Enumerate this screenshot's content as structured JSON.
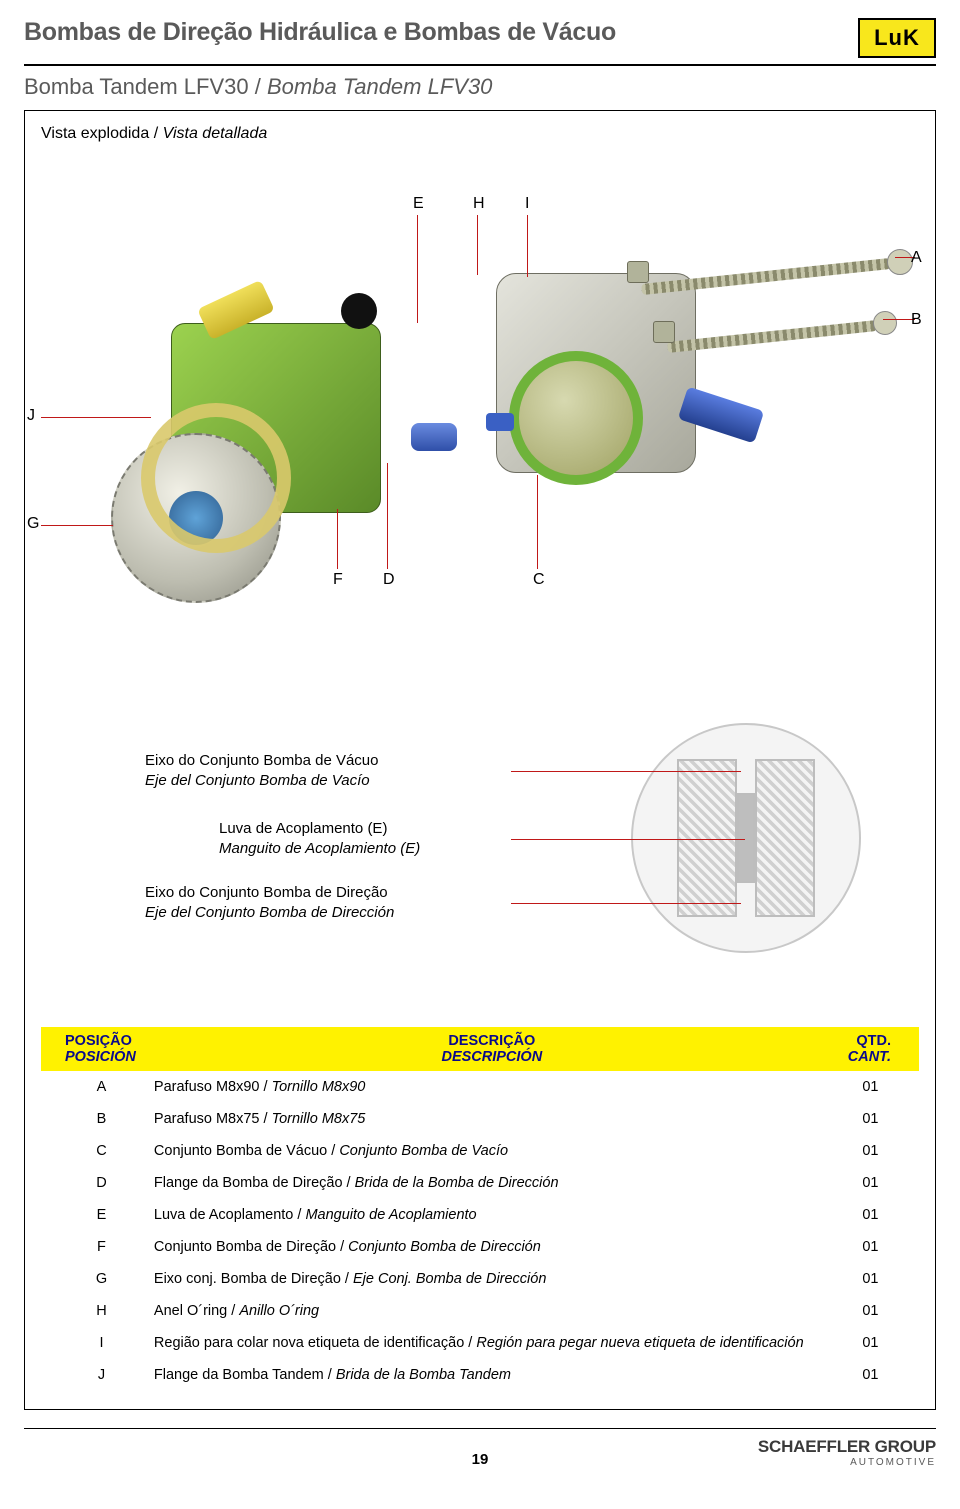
{
  "header": {
    "title": "Bombas de Direção Hidráulica e Bombas de Vácuo",
    "logo_text": "LuK",
    "subtitle_pt": "Bomba Tandem LFV30",
    "subtitle_es": "Bomba Tandem LFV30"
  },
  "vista": {
    "pt": "Vista explodida",
    "es": "Vista detallada"
  },
  "diagram": {
    "callouts": [
      "A",
      "B",
      "C",
      "D",
      "E",
      "F",
      "G",
      "H",
      "I",
      "J"
    ],
    "detail_labels": [
      {
        "pt": "Eixo do Conjunto Bomba de Vácuo",
        "es": "Eje del Conjunto Bomba de Vacío"
      },
      {
        "pt": "Luva de Acoplamento (E)",
        "es": "Manguito de Acoplamiento (E)"
      },
      {
        "pt": "Eixo do Conjunto Bomba de Direção",
        "es": "Eje del Conjunto Bomba de Dirección"
      }
    ]
  },
  "table": {
    "headers": {
      "pos_pt": "POSIÇÃO",
      "pos_es": "POSICIÓN",
      "desc_pt": "DESCRIÇÃO",
      "desc_es": "DESCRIPCIÓN",
      "qty_pt": "QTD.",
      "qty_es": "CANT."
    },
    "rows": [
      {
        "pos": "A",
        "desc_pt": "Parafuso M8x90",
        "desc_es": "Tornillo M8x90",
        "qty": "01"
      },
      {
        "pos": "B",
        "desc_pt": "Parafuso M8x75",
        "desc_es": "Tornillo M8x75",
        "qty": "01"
      },
      {
        "pos": "C",
        "desc_pt": "Conjunto Bomba de Vácuo",
        "desc_es": "Conjunto Bomba de Vacío",
        "qty": "01"
      },
      {
        "pos": "D",
        "desc_pt": "Flange da Bomba de Direção",
        "desc_es": "Brida de la Bomba de Dirección",
        "qty": "01"
      },
      {
        "pos": "E",
        "desc_pt": "Luva de Acoplamento",
        "desc_es": "Manguito de Acoplamiento",
        "qty": "01"
      },
      {
        "pos": "F",
        "desc_pt": "Conjunto Bomba de Direção",
        "desc_es": "Conjunto Bomba de Dirección",
        "qty": "01"
      },
      {
        "pos": "G",
        "desc_pt": "Eixo conj. Bomba de Direção",
        "desc_es": "Eje Conj. Bomba de Dirección",
        "qty": "01"
      },
      {
        "pos": "H",
        "desc_pt": "Anel O´ring",
        "desc_es": "Anillo O´ring",
        "qty": "01"
      },
      {
        "pos": "I",
        "desc_pt": "Região para colar nova etiqueta de identificação",
        "desc_es": "Región para pegar nueva etiqueta de identificación",
        "qty": "01"
      },
      {
        "pos": "J",
        "desc_pt": "Flange da Bomba Tandem",
        "desc_es": "Brida de la Bomba Tandem",
        "qty": "01"
      }
    ]
  },
  "footer": {
    "page": "19",
    "brand": "SCHAEFFLER GROUP",
    "brand_sub": "AUTOMOTIVE"
  },
  "colors": {
    "header_yellow": "#fff200",
    "header_text": "#0a0a8a",
    "lead_line": "#c01818",
    "pump_green": "#7fb83a",
    "pump_green_dark": "#5a8a28",
    "metal": "#c7c7c0",
    "metal_dark": "#9a9a92",
    "blue_nozzle": "#3a5fc4",
    "yellow_nozzle": "#e8d43a",
    "logo_bg": "#f8e71c"
  }
}
